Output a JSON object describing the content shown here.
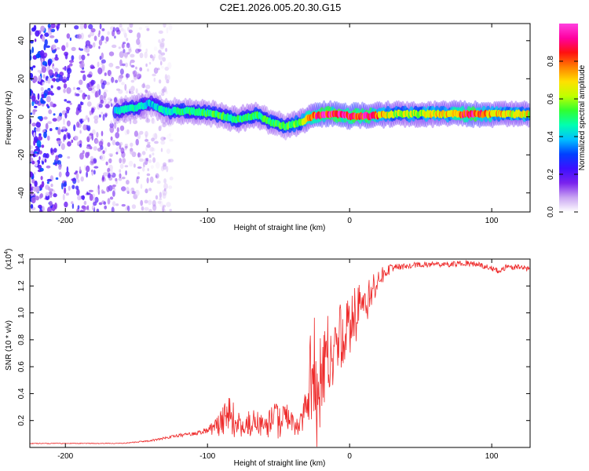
{
  "title": "C2E1.2026.005.20.30.G15",
  "chart_data": [
    {
      "type": "heatmap",
      "title": "C2E1.2026.005.20.30.G15",
      "xlabel": "Height of straight line (km)",
      "ylabel": "Frequency (Hz)",
      "xlim": [
        -225,
        127
      ],
      "ylim": [
        -50,
        49
      ],
      "x_ticks": [
        -200,
        -100,
        0,
        100
      ],
      "x_tick_labels": [
        "-200",
        "-100",
        "0",
        "100"
      ],
      "y_ticks": [
        -40,
        -20,
        0,
        20,
        40
      ],
      "y_tick_labels": [
        "-40",
        "-20",
        "0",
        "20",
        "40"
      ],
      "colorbar": {
        "label": "Normalized spectral amplitude",
        "range": [
          0,
          1
        ],
        "ticks": [
          0.0,
          0.2,
          0.4,
          0.6,
          0.8
        ],
        "tick_labels": [
          "0.0",
          "0.2",
          "0.4",
          "0.6",
          "0.8"
        ],
        "colors": [
          "#ffffff",
          "#c9a4f2",
          "#7a22ee",
          "#3c10ff",
          "#0040ff",
          "#00c0ff",
          "#00ffb0",
          "#30ff30",
          "#c0ff00",
          "#ffe000",
          "#ff8000",
          "#ff1010",
          "#ff00a0",
          "#ff40e0"
        ]
      },
      "ridge": [
        {
          "x": -165,
          "y": 3.0,
          "amp": 0.42
        },
        {
          "x": -150,
          "y": 5.0,
          "amp": 0.45
        },
        {
          "x": -140,
          "y": 7.0,
          "amp": 0.38
        },
        {
          "x": -130,
          "y": 3.0,
          "amp": 0.45
        },
        {
          "x": -110,
          "y": 3.0,
          "amp": 0.48
        },
        {
          "x": -95,
          "y": 1.5,
          "amp": 0.5
        },
        {
          "x": -80,
          "y": -1.5,
          "amp": 0.5
        },
        {
          "x": -65,
          "y": 1.0,
          "amp": 0.5
        },
        {
          "x": -55,
          "y": -3.0,
          "amp": 0.52
        },
        {
          "x": -45,
          "y": -5.0,
          "amp": 0.5
        },
        {
          "x": -35,
          "y": -3.0,
          "amp": 0.55
        },
        {
          "x": -25,
          "y": 0.5,
          "amp": 0.85
        },
        {
          "x": -15,
          "y": 1.5,
          "amp": 0.9
        },
        {
          "x": 0,
          "y": 0.5,
          "amp": 0.9
        },
        {
          "x": 15,
          "y": 0.5,
          "amp": 0.85
        },
        {
          "x": 30,
          "y": 1.5,
          "amp": 0.6
        },
        {
          "x": 50,
          "y": 1.5,
          "amp": 0.62
        },
        {
          "x": 70,
          "y": 1.5,
          "amp": 0.7
        },
        {
          "x": 85,
          "y": 1.5,
          "amp": 0.92
        },
        {
          "x": 100,
          "y": 1.5,
          "amp": 0.7
        },
        {
          "x": 127,
          "y": 1.5,
          "amp": 0.65
        }
      ],
      "noise_region": {
        "x_start": -225,
        "x_end": -125,
        "amplitude_max": 0.35
      }
    },
    {
      "type": "line",
      "xlabel": "Height of straight line (km)",
      "ylabel": "SNR (10 * v/v)",
      "y_multiplier_label": "(x10",
      "y_multiplier_exponent": "4",
      "y_multiplier_close": ")",
      "xlim": [
        -225,
        127
      ],
      "ylim": [
        0.0,
        1.4
      ],
      "x_ticks": [
        -200,
        -100,
        0,
        100
      ],
      "x_tick_labels": [
        "-200",
        "-100",
        "0",
        "100"
      ],
      "y_ticks": [
        0.2,
        0.4,
        0.6,
        0.8,
        1.0,
        1.2,
        1.4
      ],
      "y_tick_labels": [
        "0.2",
        "0.4",
        "0.6",
        "0.8",
        "1.0",
        "1.2",
        "1.4"
      ],
      "color": "#ee2a2a",
      "series": [
        {
          "name": "SNR",
          "x": [
            -225,
            -200,
            -180,
            -160,
            -150,
            -140,
            -130,
            -120,
            -110,
            -100,
            -90,
            -85,
            -80,
            -75,
            -70,
            -60,
            -55,
            -50,
            -45,
            -40,
            -35,
            -30,
            -28,
            -25,
            -22,
            -20,
            -18,
            -15,
            -12,
            -10,
            -5,
            0,
            5,
            10,
            15,
            20,
            25,
            30,
            40,
            50,
            60,
            70,
            80,
            90,
            100,
            105,
            110,
            120,
            127
          ],
          "y": [
            0.03,
            0.03,
            0.03,
            0.03,
            0.04,
            0.05,
            0.07,
            0.09,
            0.1,
            0.12,
            0.2,
            0.25,
            0.2,
            0.15,
            0.2,
            0.18,
            0.25,
            0.22,
            0.25,
            0.2,
            0.18,
            0.35,
            0.5,
            0.55,
            0.6,
            0.5,
            0.55,
            0.75,
            0.7,
            0.8,
            0.85,
            0.95,
            1.0,
            1.1,
            1.15,
            1.25,
            1.3,
            1.33,
            1.35,
            1.36,
            1.36,
            1.36,
            1.37,
            1.36,
            1.33,
            1.31,
            1.34,
            1.34,
            1.32
          ],
          "jitter": [
            0.003,
            0.003,
            0.003,
            0.003,
            0.004,
            0.007,
            0.01,
            0.012,
            0.015,
            0.03,
            0.1,
            0.16,
            0.1,
            0.05,
            0.1,
            0.08,
            0.14,
            0.12,
            0.13,
            0.08,
            0.06,
            0.15,
            0.3,
            0.5,
            0.45,
            0.4,
            0.35,
            0.3,
            0.3,
            0.25,
            0.25,
            0.2,
            0.2,
            0.15,
            0.12,
            0.08,
            0.05,
            0.03,
            0.02,
            0.02,
            0.02,
            0.02,
            0.02,
            0.02,
            0.02,
            0.02,
            0.02,
            0.02,
            0.02
          ]
        }
      ]
    }
  ]
}
